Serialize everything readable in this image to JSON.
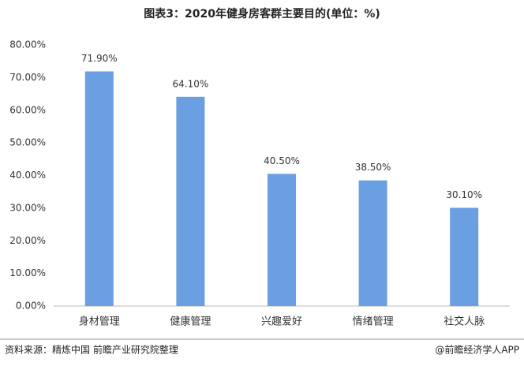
{
  "chart_data": {
    "type": "bar",
    "title": "图表3：2020年健身房客群主要目的(单位：%)",
    "categories": [
      "身材管理",
      "健康管理",
      "兴趣爱好",
      "情绪管理",
      "社交人脉"
    ],
    "values": [
      71.9,
      64.1,
      40.5,
      38.5,
      30.1
    ],
    "value_labels": [
      "71.90%",
      "64.10%",
      "40.50%",
      "38.50%",
      "30.10%"
    ],
    "color": "#6a9fe2",
    "ylim": [
      0,
      80
    ],
    "yticks": [
      {
        "value": 0,
        "label": "0.00%"
      },
      {
        "value": 10,
        "label": "10.00%"
      },
      {
        "value": 20,
        "label": "20.00%"
      },
      {
        "value": 30,
        "label": "30.00%"
      },
      {
        "value": 40,
        "label": "40.00%"
      },
      {
        "value": 50,
        "label": "50.00%"
      },
      {
        "value": 60,
        "label": "60.00%"
      },
      {
        "value": 70,
        "label": "70.00%"
      },
      {
        "value": 80,
        "label": "80.00%"
      }
    ],
    "grid": false,
    "source": "资料来源：精炼中国 前瞻产业研究院整理",
    "credit": "@前瞻经济学人APP"
  }
}
